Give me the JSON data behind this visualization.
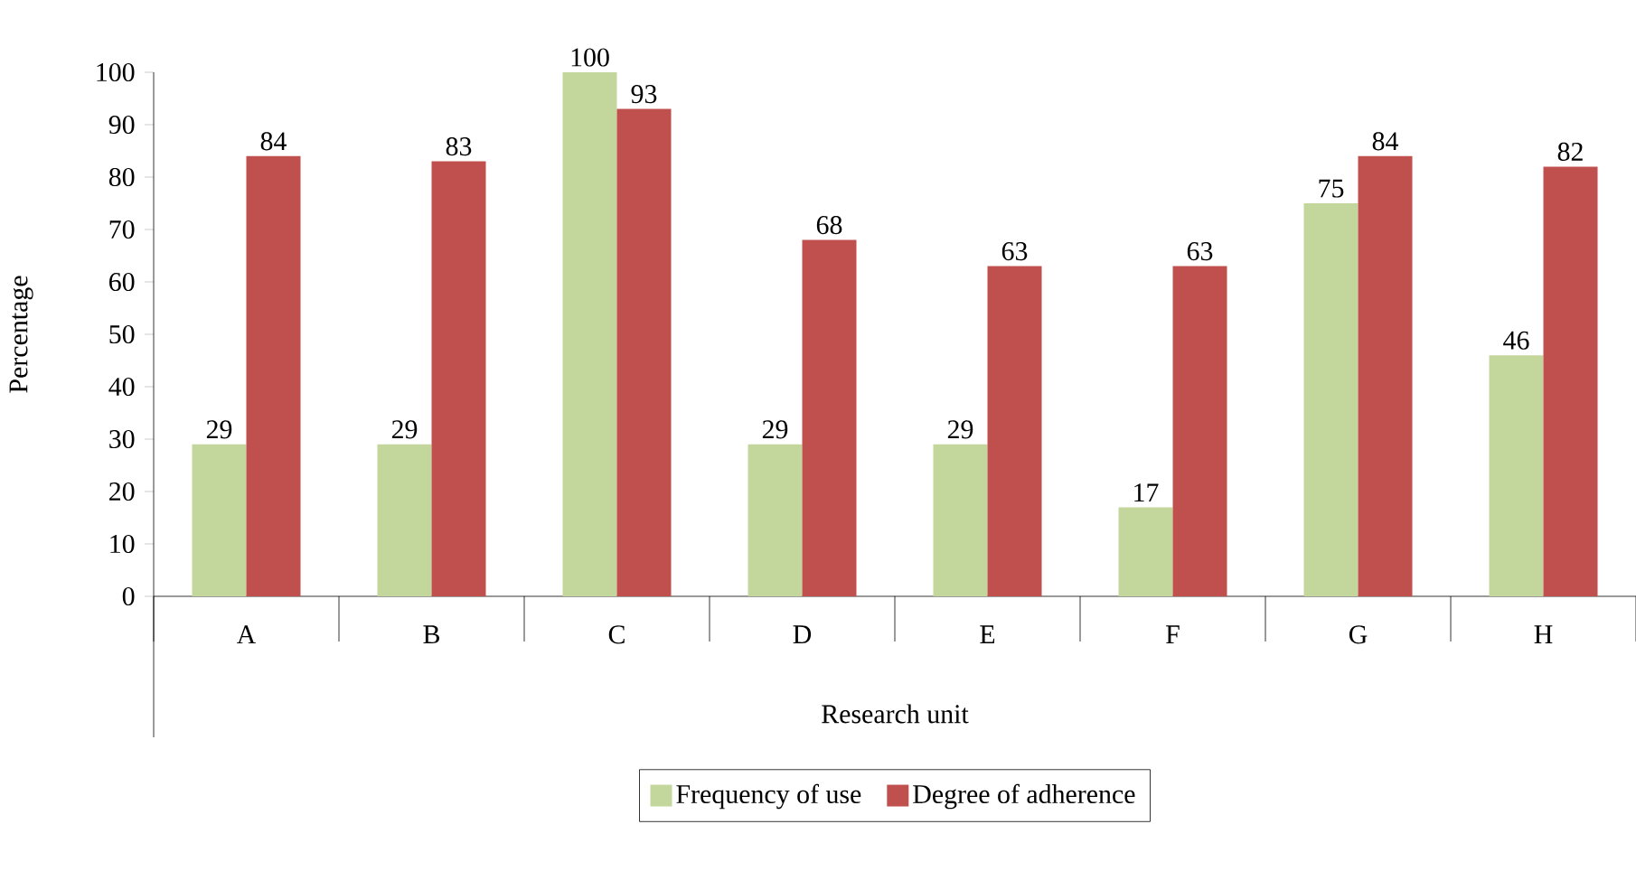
{
  "chart_data": {
    "type": "bar",
    "xlabel": "Research unit",
    "ylabel": "Percentage",
    "categories": [
      "A",
      "B",
      "C",
      "D",
      "E",
      "F",
      "G",
      "H"
    ],
    "series": [
      {
        "name": "Frequency of use",
        "color": "#c3d69b",
        "values": [
          29,
          29,
          100,
          29,
          29,
          17,
          75,
          46
        ]
      },
      {
        "name": "Degree of adherence",
        "color": "#c0504d",
        "values": [
          84,
          83,
          93,
          68,
          63,
          63,
          84,
          82
        ]
      }
    ],
    "ylim": [
      0,
      100
    ],
    "yticks": [
      0,
      10,
      20,
      30,
      40,
      50,
      60,
      70,
      80,
      90,
      100
    ],
    "data_labels": true,
    "legend": "bottom",
    "grid": false
  }
}
